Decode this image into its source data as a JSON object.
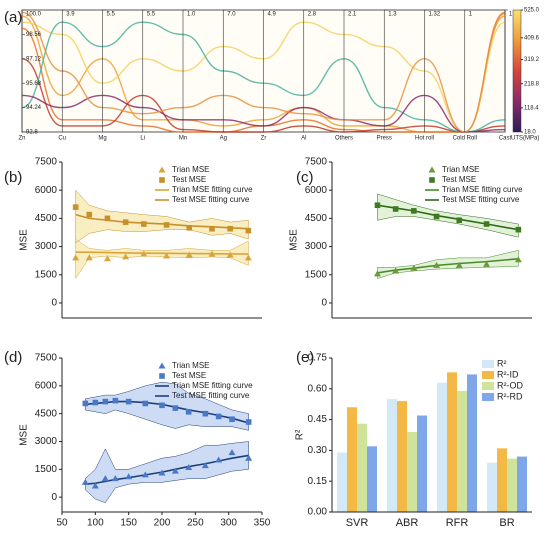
{
  "chart_data": [
    {
      "type": "parallel",
      "label": "(a)",
      "axes": [
        {
          "name": "Zn",
          "lim": [
            92.8,
            100
          ],
          "ticks": [
            {
              "value": 100,
              "label": "100.0"
            },
            98.56,
            97.12,
            95.68,
            94.24,
            92.8
          ]
        },
        {
          "name": "Cu",
          "lim": [
            0,
            3.9
          ],
          "ticks": [
            3.9
          ]
        },
        {
          "name": "Mg",
          "lim": [
            0,
            5.5
          ],
          "ticks": [
            5.5
          ]
        },
        {
          "name": "Li",
          "lim": [
            0,
            5.5
          ],
          "ticks": [
            5.5
          ]
        },
        {
          "name": "Mn",
          "lim": [
            0,
            1
          ],
          "ticks": [
            {
              "value": 1,
              "label": "1.0"
            }
          ]
        },
        {
          "name": "Ag",
          "lim": [
            0,
            7
          ],
          "ticks": [
            {
              "value": 7,
              "label": "7.0"
            }
          ]
        },
        {
          "name": "Zr",
          "lim": [
            0,
            4.9
          ],
          "ticks": [
            4.9
          ]
        },
        {
          "name": "Al",
          "lim": [
            0,
            2.8
          ],
          "ticks": [
            2.8
          ]
        },
        {
          "name": "Others",
          "lim": [
            0,
            2.1
          ],
          "ticks": [
            2.1
          ]
        },
        {
          "name": "Press",
          "lim": [
            0,
            1.3
          ],
          "ticks": [
            1.3
          ]
        },
        {
          "name": "Hot roll",
          "lim": [
            0,
            1.32
          ],
          "ticks": [
            1.32
          ]
        },
        {
          "name": "Cold Roll",
          "lim": [
            0,
            1
          ],
          "ticks": [
            1
          ]
        },
        {
          "name": "Cast",
          "lim": [
            0,
            1
          ],
          "ticks": [
            1
          ]
        }
      ],
      "ylim": [
        0,
        1
      ],
      "lines": [
        {
          "color": "#f0a030",
          "values": [
            0.95,
            0.3,
            0.6,
            0.1,
            0.1,
            0.05,
            0.1,
            0.2,
            0.05,
            0.05,
            0.0,
            0.0,
            0.95
          ]
        },
        {
          "color": "#e8702a",
          "values": [
            0.85,
            0.1,
            0.1,
            0.05,
            0.0,
            0.0,
            0.05,
            0.1,
            0.02,
            0.0,
            0.0,
            0.0,
            0.98
          ]
        },
        {
          "color": "#c0392b",
          "values": [
            0.6,
            0.05,
            0.05,
            0.3,
            0.02,
            0.0,
            0.0,
            0.05,
            0.0,
            0.02,
            0.05,
            0.0,
            0.05
          ]
        },
        {
          "color": "#f5d060",
          "values": [
            0.9,
            0.8,
            0.4,
            0.6,
            0.5,
            0.7,
            0.6,
            0.9,
            0.8,
            0.7,
            0.5,
            0.0,
            0.9
          ]
        },
        {
          "color": "#49b0a0",
          "values": [
            0.2,
            0.9,
            0.7,
            0.9,
            0.8,
            0.5,
            0.4,
            0.3,
            0.6,
            0.2,
            0.1,
            0.0,
            0.1
          ]
        },
        {
          "color": "#8a2a6a",
          "values": [
            0.3,
            0.2,
            0.3,
            0.2,
            0.1,
            0.1,
            0.05,
            0.2,
            0.1,
            0.05,
            0.3,
            0.0,
            0.02
          ]
        },
        {
          "color": "#e89040",
          "values": [
            0.98,
            0.5,
            0.2,
            0.15,
            0.2,
            0.3,
            0.2,
            0.15,
            0.1,
            0.1,
            0.6,
            0.0,
            0.97
          ]
        }
      ],
      "colorbar": {
        "label": "UTS(MPa)",
        "lim": [
          18,
          525
        ],
        "ticks": [
          {
            "value": 525,
            "label": "525.0"
          },
          409.6,
          319.2,
          218.8,
          118.4,
          {
            "value": 18,
            "label": "18.0"
          }
        ],
        "colors": [
          "#2d1a5a",
          "#8a2a6a",
          "#d8443a",
          "#f09a3a",
          "#f8e070"
        ]
      }
    },
    {
      "type": "scatter",
      "label": "(b)",
      "ylabel": "MSE",
      "xlim": [
        125,
        345
      ],
      "ylim": [
        -800,
        7500
      ],
      "yticks": [
        0,
        1500,
        3000,
        4500,
        6000,
        7500
      ],
      "series": [
        {
          "name": "Trian MSE",
          "color": "#d9a53a",
          "marker": "triangle",
          "x": [
            140,
            155,
            175,
            195,
            215,
            240,
            265,
            290,
            310,
            330
          ],
          "values": [
            2400,
            2400,
            2350,
            2450,
            2600,
            2500,
            2550,
            2600,
            2550,
            2400
          ]
        },
        {
          "name": "Test MSE",
          "color": "#c8902a",
          "marker": "square",
          "x": [
            140,
            155,
            175,
            195,
            215,
            240,
            265,
            290,
            310,
            330
          ],
          "values": [
            5100,
            4700,
            4500,
            4300,
            4200,
            4150,
            4000,
            3950,
            3950,
            3850
          ]
        }
      ],
      "fits": [
        {
          "name": "Trian MSE fitting curve",
          "color": "#d9a53a",
          "band": "#f6e7a8",
          "x": [
            140,
            155,
            175,
            195,
            215,
            240,
            265,
            290,
            310,
            330
          ],
          "values": [
            2700,
            2700,
            2680,
            2660,
            2650,
            2640,
            2630,
            2620,
            2610,
            2600
          ],
          "upper": [
            3400,
            2900,
            2800,
            2900,
            2800,
            2800,
            2900,
            2800,
            2800,
            3300
          ],
          "lower": [
            1300,
            2400,
            2500,
            2400,
            2500,
            2450,
            2400,
            2450,
            2400,
            2000
          ]
        },
        {
          "name": "Test MSE fitting curve",
          "color": "#c8902a",
          "band": "#f6e7a8",
          "x": [
            140,
            155,
            175,
            195,
            215,
            240,
            265,
            290,
            310,
            330
          ],
          "values": [
            4700,
            4500,
            4400,
            4300,
            4250,
            4200,
            4100,
            4050,
            4000,
            3950
          ],
          "upper": [
            6000,
            5200,
            4900,
            4800,
            4700,
            4600,
            4300,
            4500,
            4300,
            4400
          ],
          "lower": [
            3200,
            3700,
            3900,
            3800,
            3800,
            3900,
            3900,
            3600,
            3700,
            3400
          ]
        }
      ]
    },
    {
      "type": "scatter",
      "label": "(c)",
      "ylabel": "MSE",
      "xlim": [
        125,
        345
      ],
      "ylim": [
        -800,
        7500
      ],
      "yticks": [
        0,
        1500,
        3000,
        4500,
        6000,
        7500
      ],
      "series": [
        {
          "name": "Trian MSE",
          "color": "#6a9a3a",
          "marker": "triangle",
          "x": [
            175,
            195,
            215,
            240,
            265,
            295,
            330
          ],
          "values": [
            1550,
            1700,
            1850,
            2000,
            2000,
            2050,
            2300
          ]
        },
        {
          "name": "Test MSE",
          "color": "#3f7a22",
          "marker": "square",
          "x": [
            175,
            195,
            215,
            240,
            265,
            295,
            330
          ],
          "values": [
            5200,
            5000,
            4900,
            4600,
            4400,
            4200,
            3900
          ]
        }
      ],
      "fits": [
        {
          "name": "Trian MSE fitting curve",
          "color": "#4a8a2a",
          "band": "#d6ecc8",
          "x": [
            175,
            195,
            215,
            240,
            265,
            295,
            330
          ],
          "values": [
            1600,
            1750,
            1850,
            2000,
            2100,
            2200,
            2350
          ],
          "upper": [
            1900,
            1900,
            2000,
            2300,
            2400,
            2400,
            2800
          ],
          "lower": [
            1300,
            1600,
            1700,
            1800,
            1850,
            1900,
            1950
          ]
        },
        {
          "name": "Test MSE fitting curve",
          "color": "#2f6a18",
          "band": "#d6ecc8",
          "x": [
            175,
            195,
            215,
            240,
            265,
            295,
            330
          ],
          "values": [
            5200,
            5050,
            4900,
            4650,
            4450,
            4200,
            3900
          ],
          "upper": [
            5800,
            5500,
            5200,
            4900,
            4700,
            4500,
            4200
          ],
          "lower": [
            4400,
            4600,
            4600,
            4400,
            4200,
            3900,
            3500
          ]
        }
      ]
    },
    {
      "type": "scatter",
      "label": "(d)",
      "ylabel": "MSE",
      "xlim": [
        50,
        350
      ],
      "xticks": [
        50,
        100,
        150,
        200,
        250,
        300,
        350
      ],
      "ylim": [
        -800,
        7500
      ],
      "yticks": [
        0,
        1500,
        3000,
        4500,
        6000,
        7500
      ],
      "series": [
        {
          "name": "Trian MSE",
          "color": "#4a78c8",
          "marker": "triangle",
          "x": [
            85,
            100,
            115,
            130,
            150,
            175,
            200,
            220,
            240,
            265,
            285,
            305,
            330
          ],
          "values": [
            800,
            600,
            1000,
            1000,
            1100,
            1200,
            1300,
            1400,
            1600,
            1700,
            2000,
            2400,
            2100
          ]
        },
        {
          "name": "Test MSE",
          "color": "#4a78c8",
          "marker": "square",
          "x": [
            85,
            100,
            115,
            130,
            150,
            175,
            200,
            220,
            240,
            265,
            285,
            305,
            330
          ],
          "values": [
            5050,
            5100,
            5150,
            5200,
            5150,
            5050,
            4950,
            4800,
            4600,
            4500,
            4350,
            4200,
            4050
          ]
        }
      ],
      "fits": [
        {
          "name": "Trian MSE fitting curve",
          "color": "#1f3f7a",
          "band": "#b8cdf0",
          "x": [
            85,
            100,
            115,
            130,
            150,
            175,
            200,
            220,
            240,
            265,
            285,
            305,
            330
          ],
          "values": [
            700,
            750,
            850,
            950,
            1050,
            1200,
            1350,
            1500,
            1650,
            1800,
            1950,
            2100,
            2250
          ],
          "upper": [
            1000,
            1500,
            2600,
            1500,
            1500,
            1800,
            2100,
            2200,
            2400,
            2800,
            2800,
            2900,
            3000
          ],
          "lower": [
            400,
            -100,
            -300,
            500,
            700,
            800,
            800,
            900,
            1000,
            1000,
            1200,
            1400,
            1500
          ]
        },
        {
          "name": "Test MSE fitting curve",
          "color": "#1f3f7a",
          "band": "#b8cdf0",
          "x": [
            85,
            100,
            115,
            130,
            150,
            175,
            200,
            220,
            240,
            265,
            285,
            305,
            330
          ],
          "values": [
            5000,
            5050,
            5100,
            5150,
            5150,
            5100,
            5000,
            4850,
            4700,
            4550,
            4400,
            4250,
            4000
          ],
          "upper": [
            5300,
            5400,
            5500,
            5500,
            5700,
            6000,
            6200,
            6100,
            5600,
            5300,
            5000,
            4700,
            4500
          ],
          "lower": [
            4700,
            4600,
            4500,
            4700,
            4500,
            4200,
            3900,
            3700,
            3900,
            3800,
            3800,
            3800,
            3600
          ]
        }
      ]
    },
    {
      "type": "bar",
      "label": "(e)",
      "ylabel": "R²",
      "categories": [
        "SVR",
        "ABR",
        "RFR",
        "BR"
      ],
      "ylim": [
        0,
        0.75
      ],
      "yticks": [
        {
          "value": 0,
          "label": "0.00"
        },
        0.15,
        {
          "value": 0.3,
          "label": "0.30"
        },
        0.45,
        {
          "value": 0.6,
          "label": "0.60"
        },
        0.75
      ],
      "series": [
        {
          "name": "R²",
          "color": "#d4e9f7",
          "values": [
            0.29,
            0.55,
            0.63,
            0.24
          ]
        },
        {
          "name": "R²-ID",
          "color": "#f4b845",
          "values": [
            0.51,
            0.54,
            0.68,
            0.31
          ]
        },
        {
          "name": "R²-OD",
          "color": "#cfe39a",
          "values": [
            0.43,
            0.39,
            0.59,
            0.26
          ]
        },
        {
          "name": "R²-RD",
          "color": "#7ea6e8",
          "values": [
            0.32,
            0.47,
            0.67,
            0.27
          ]
        }
      ]
    }
  ]
}
